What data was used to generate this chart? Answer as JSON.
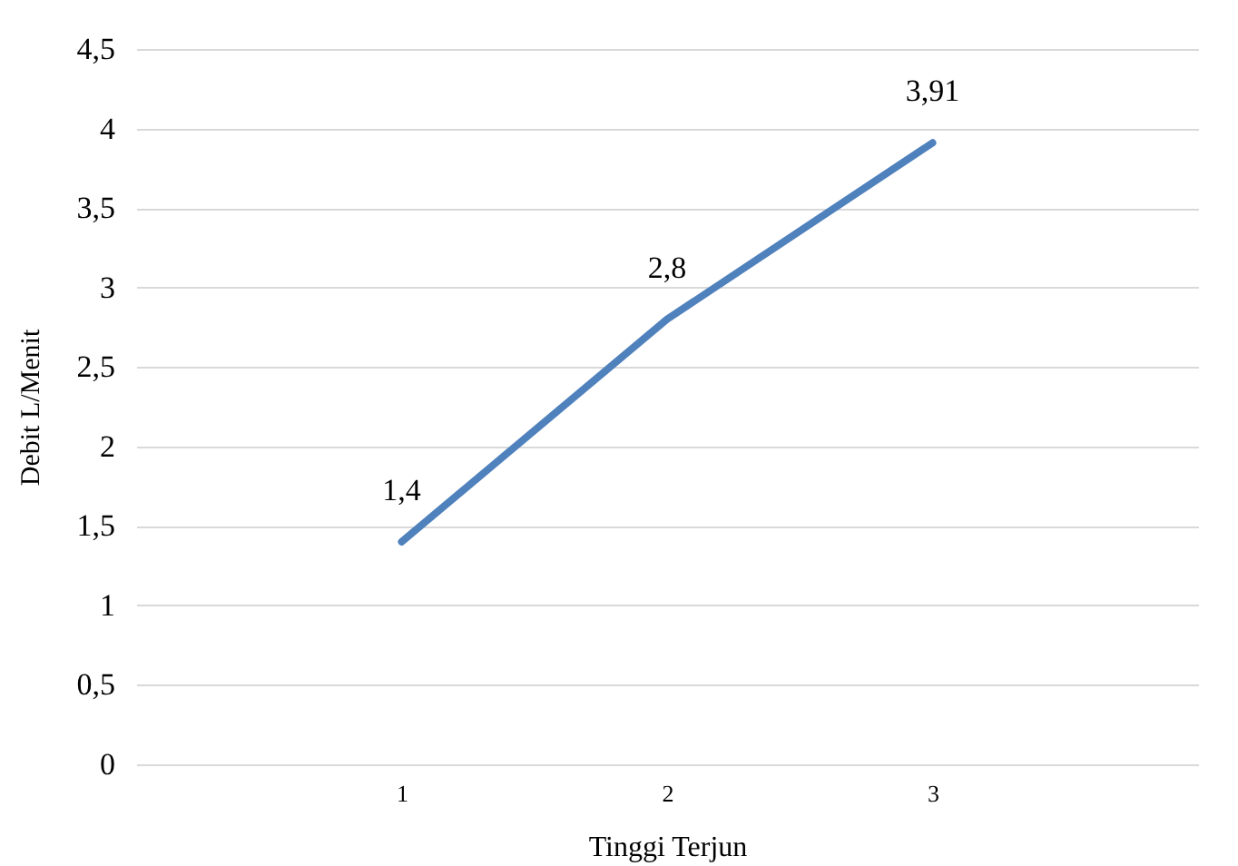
{
  "chart_data": {
    "type": "line",
    "xlabel": "Tinggi Terjun",
    "ylabel": "Debit L/Menit",
    "categories": [
      "1",
      "2",
      "3"
    ],
    "series": [
      {
        "color": "#4f81bd",
        "values": [
          1.4,
          2.8,
          3.91
        ],
        "value_labels": [
          "1,4",
          "2,8",
          "3,91"
        ]
      }
    ],
    "ylim": [
      0,
      4.5
    ],
    "yticks": [
      0,
      {
        "value": 0.5,
        "label": "0,5"
      },
      1,
      {
        "value": 1.5,
        "label": "1,5"
      },
      2,
      {
        "value": 2.5,
        "label": "2,5"
      },
      3,
      {
        "value": 3.5,
        "label": "3,5"
      },
      4,
      {
        "value": 4.5,
        "label": "4,5"
      }
    ],
    "grid": "y",
    "marker": "none",
    "line_style": "solid"
  }
}
